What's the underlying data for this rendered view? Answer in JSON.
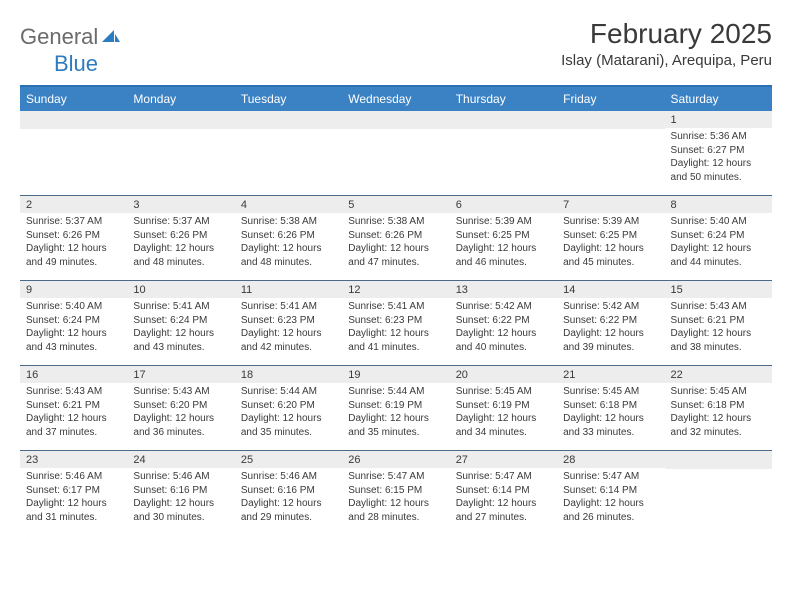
{
  "brand": {
    "part1": "General",
    "part2": "Blue"
  },
  "title": "February 2025",
  "location": "Islay (Matarani), Arequipa, Peru",
  "day_names": [
    "Sunday",
    "Monday",
    "Tuesday",
    "Wednesday",
    "Thursday",
    "Friday",
    "Saturday"
  ],
  "colors": {
    "header_bg": "#3b82c4",
    "header_border": "#2d6fb3",
    "daynum_bg": "#ededed",
    "week_divider": "#4a6a8a",
    "text": "#3a3a3a",
    "accent_blue": "#2d7bc0"
  },
  "labels": {
    "sunrise_prefix": "Sunrise: ",
    "sunset_prefix": "Sunset: ",
    "daylight_prefix": "Daylight: ",
    "daylight_hours_word": " hours",
    "daylight_and": "and ",
    "daylight_minutes_suffix": " minutes."
  },
  "weeks": [
    [
      {
        "n": "",
        "sunrise": "",
        "sunset": "",
        "dl_h": "",
        "dl_m": ""
      },
      {
        "n": "",
        "sunrise": "",
        "sunset": "",
        "dl_h": "",
        "dl_m": ""
      },
      {
        "n": "",
        "sunrise": "",
        "sunset": "",
        "dl_h": "",
        "dl_m": ""
      },
      {
        "n": "",
        "sunrise": "",
        "sunset": "",
        "dl_h": "",
        "dl_m": ""
      },
      {
        "n": "",
        "sunrise": "",
        "sunset": "",
        "dl_h": "",
        "dl_m": ""
      },
      {
        "n": "",
        "sunrise": "",
        "sunset": "",
        "dl_h": "",
        "dl_m": ""
      },
      {
        "n": "1",
        "sunrise": "5:36 AM",
        "sunset": "6:27 PM",
        "dl_h": "12",
        "dl_m": "50"
      }
    ],
    [
      {
        "n": "2",
        "sunrise": "5:37 AM",
        "sunset": "6:26 PM",
        "dl_h": "12",
        "dl_m": "49"
      },
      {
        "n": "3",
        "sunrise": "5:37 AM",
        "sunset": "6:26 PM",
        "dl_h": "12",
        "dl_m": "48"
      },
      {
        "n": "4",
        "sunrise": "5:38 AM",
        "sunset": "6:26 PM",
        "dl_h": "12",
        "dl_m": "48"
      },
      {
        "n": "5",
        "sunrise": "5:38 AM",
        "sunset": "6:26 PM",
        "dl_h": "12",
        "dl_m": "47"
      },
      {
        "n": "6",
        "sunrise": "5:39 AM",
        "sunset": "6:25 PM",
        "dl_h": "12",
        "dl_m": "46"
      },
      {
        "n": "7",
        "sunrise": "5:39 AM",
        "sunset": "6:25 PM",
        "dl_h": "12",
        "dl_m": "45"
      },
      {
        "n": "8",
        "sunrise": "5:40 AM",
        "sunset": "6:24 PM",
        "dl_h": "12",
        "dl_m": "44"
      }
    ],
    [
      {
        "n": "9",
        "sunrise": "5:40 AM",
        "sunset": "6:24 PM",
        "dl_h": "12",
        "dl_m": "43"
      },
      {
        "n": "10",
        "sunrise": "5:41 AM",
        "sunset": "6:24 PM",
        "dl_h": "12",
        "dl_m": "43"
      },
      {
        "n": "11",
        "sunrise": "5:41 AM",
        "sunset": "6:23 PM",
        "dl_h": "12",
        "dl_m": "42"
      },
      {
        "n": "12",
        "sunrise": "5:41 AM",
        "sunset": "6:23 PM",
        "dl_h": "12",
        "dl_m": "41"
      },
      {
        "n": "13",
        "sunrise": "5:42 AM",
        "sunset": "6:22 PM",
        "dl_h": "12",
        "dl_m": "40"
      },
      {
        "n": "14",
        "sunrise": "5:42 AM",
        "sunset": "6:22 PM",
        "dl_h": "12",
        "dl_m": "39"
      },
      {
        "n": "15",
        "sunrise": "5:43 AM",
        "sunset": "6:21 PM",
        "dl_h": "12",
        "dl_m": "38"
      }
    ],
    [
      {
        "n": "16",
        "sunrise": "5:43 AM",
        "sunset": "6:21 PM",
        "dl_h": "12",
        "dl_m": "37"
      },
      {
        "n": "17",
        "sunrise": "5:43 AM",
        "sunset": "6:20 PM",
        "dl_h": "12",
        "dl_m": "36"
      },
      {
        "n": "18",
        "sunrise": "5:44 AM",
        "sunset": "6:20 PM",
        "dl_h": "12",
        "dl_m": "35"
      },
      {
        "n": "19",
        "sunrise": "5:44 AM",
        "sunset": "6:19 PM",
        "dl_h": "12",
        "dl_m": "35"
      },
      {
        "n": "20",
        "sunrise": "5:45 AM",
        "sunset": "6:19 PM",
        "dl_h": "12",
        "dl_m": "34"
      },
      {
        "n": "21",
        "sunrise": "5:45 AM",
        "sunset": "6:18 PM",
        "dl_h": "12",
        "dl_m": "33"
      },
      {
        "n": "22",
        "sunrise": "5:45 AM",
        "sunset": "6:18 PM",
        "dl_h": "12",
        "dl_m": "32"
      }
    ],
    [
      {
        "n": "23",
        "sunrise": "5:46 AM",
        "sunset": "6:17 PM",
        "dl_h": "12",
        "dl_m": "31"
      },
      {
        "n": "24",
        "sunrise": "5:46 AM",
        "sunset": "6:16 PM",
        "dl_h": "12",
        "dl_m": "30"
      },
      {
        "n": "25",
        "sunrise": "5:46 AM",
        "sunset": "6:16 PM",
        "dl_h": "12",
        "dl_m": "29"
      },
      {
        "n": "26",
        "sunrise": "5:47 AM",
        "sunset": "6:15 PM",
        "dl_h": "12",
        "dl_m": "28"
      },
      {
        "n": "27",
        "sunrise": "5:47 AM",
        "sunset": "6:14 PM",
        "dl_h": "12",
        "dl_m": "27"
      },
      {
        "n": "28",
        "sunrise": "5:47 AM",
        "sunset": "6:14 PM",
        "dl_h": "12",
        "dl_m": "26"
      },
      {
        "n": "",
        "sunrise": "",
        "sunset": "",
        "dl_h": "",
        "dl_m": ""
      }
    ]
  ]
}
